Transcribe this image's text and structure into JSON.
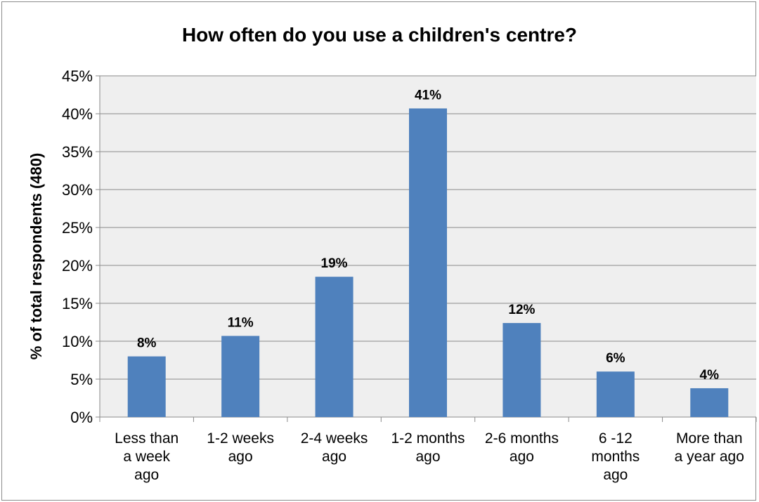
{
  "chart_data": {
    "type": "bar",
    "title": "How often do you use a children's centre?",
    "xlabel": "",
    "ylabel": "% of total respondents (480)",
    "categories": [
      [
        "Less than",
        "a week",
        "ago"
      ],
      [
        "1-2 weeks",
        "ago"
      ],
      [
        "2-4 weeks",
        "ago"
      ],
      [
        "1-2 months",
        "ago"
      ],
      [
        "2-6 months",
        "ago"
      ],
      [
        "6 -12",
        "months",
        "ago"
      ],
      [
        "More than",
        "a year ago"
      ]
    ],
    "values": [
      8,
      10.7,
      18.5,
      40.7,
      12.4,
      6,
      3.8
    ],
    "data_labels": [
      "8%",
      "11%",
      "19%",
      "41%",
      "12%",
      "6%",
      "4%"
    ],
    "yticks": [
      "0%",
      "5%",
      "10%",
      "15%",
      "20%",
      "25%",
      "30%",
      "35%",
      "40%",
      "45%"
    ],
    "ylim": [
      0,
      45
    ],
    "grid": true,
    "bar_color": "#4f81bd",
    "plot_bg": "#efefef"
  }
}
